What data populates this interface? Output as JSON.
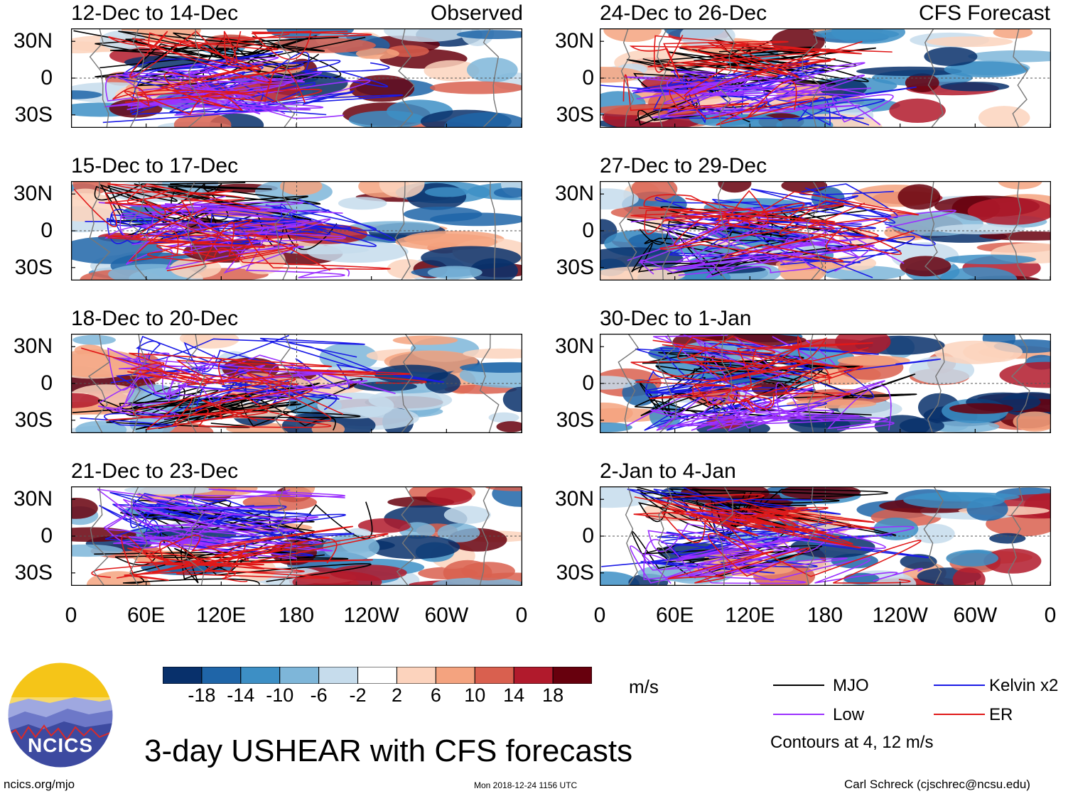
{
  "chart_data": {
    "type": "heatmap",
    "title": "3-day USHEAR with CFS forecasts",
    "units": "m/s",
    "colorbar": {
      "ticks": [
        "-18",
        "-14",
        "-10",
        "-6",
        "-2",
        "2",
        "6",
        "10",
        "14",
        "18"
      ],
      "colors": [
        "#08306b",
        "#1f65a8",
        "#3d8fc5",
        "#7eb6d9",
        "#c6dcec",
        "#ffffff",
        "#fcd3bd",
        "#f4a37f",
        "#d9604f",
        "#b11a2c",
        "#67000d"
      ]
    },
    "y_ticks": [
      "30N",
      "0",
      "30S"
    ],
    "x_ticks": [
      "0",
      "60E",
      "120E",
      "180",
      "120W",
      "60W",
      "0"
    ],
    "columns": [
      {
        "label": "Observed",
        "panels": [
          "12-Dec to 14-Dec",
          "15-Dec to 17-Dec",
          "18-Dec to 20-Dec",
          "21-Dec to 23-Dec"
        ]
      },
      {
        "label": "CFS Forecast",
        "panels": [
          "24-Dec to 26-Dec",
          "27-Dec to 29-Dec",
          "30-Dec to 1-Jan",
          "2-Jan to 4-Jan"
        ]
      }
    ],
    "legend": [
      {
        "label": "MJO",
        "color": "#000000"
      },
      {
        "label": "Kelvin x2",
        "color": "#1a1ae6"
      },
      {
        "label": "Low",
        "color": "#9b30ff"
      },
      {
        "label": "ER",
        "color": "#e01818"
      }
    ],
    "contour_note": "Contours at 4, 12 m/s"
  },
  "branding": {
    "logo_text": "NCICS",
    "url": "ncics.org/mjo",
    "timestamp": "Mon 2018-12-24 1156 UTC",
    "author": "Carl Schreck (cjschrec@ncsu.edu)"
  }
}
